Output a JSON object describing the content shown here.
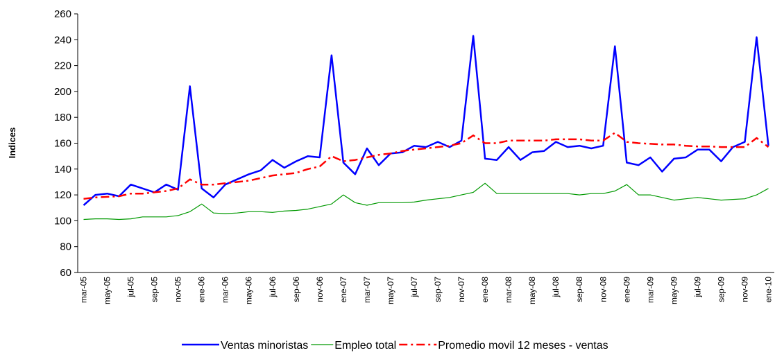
{
  "chart_data": {
    "type": "line",
    "y_label": "Indices",
    "categories": [
      "mar-05",
      null,
      "may-05",
      null,
      "jul-05",
      null,
      "sep-05",
      null,
      "nov-05",
      null,
      "ene-06",
      null,
      "mar-06",
      null,
      "may-06",
      null,
      "jul-06",
      null,
      "sep-06",
      null,
      "nov-06",
      null,
      "ene-07",
      null,
      "mar-07",
      null,
      "may-07",
      null,
      "jul-07",
      null,
      "sep-07",
      null,
      "nov-07",
      null,
      "ene-08",
      null,
      "mar-08",
      null,
      "may-08",
      null,
      "jul-08",
      null,
      "sep-08",
      null,
      "nov-08",
      null,
      "ene-09",
      null,
      "mar-09",
      null,
      "may-09",
      null,
      "jul-09",
      null,
      "sep-09",
      null,
      "nov-09",
      null,
      "ene-10"
    ],
    "series": [
      {
        "name": "Ventas minoristas",
        "color": "#0000ff",
        "style": "solid",
        "values": [
          112,
          120,
          121,
          119,
          128,
          125,
          122,
          128,
          124,
          204,
          125,
          118,
          128,
          132,
          136,
          139,
          147,
          141,
          146,
          150,
          149,
          228,
          145,
          136,
          156,
          143,
          152,
          153,
          158,
          157,
          161,
          157,
          162,
          243,
          148,
          147,
          157,
          147,
          153,
          154,
          161,
          157,
          158,
          156,
          158,
          235,
          145,
          143,
          149,
          138,
          148,
          149,
          155,
          155,
          146,
          157,
          161,
          242,
          158
        ]
      },
      {
        "name": "Empleo total",
        "color": "#009900",
        "style": "solid",
        "values": [
          101,
          101.5,
          101.5,
          101,
          101.5,
          103,
          103,
          103,
          104,
          107,
          113,
          106,
          105.5,
          106,
          107,
          107,
          106.5,
          107.5,
          108,
          109,
          111,
          113,
          120,
          114,
          112,
          114,
          114,
          114,
          114.5,
          116,
          117,
          118,
          120,
          122,
          129,
          121,
          121,
          121,
          121,
          121,
          121,
          121,
          120,
          121,
          121,
          123,
          128,
          120,
          120,
          118,
          116,
          117,
          118,
          117,
          116,
          116.5,
          117,
          120,
          125
        ]
      },
      {
        "name": "Promedio movil 12 meses - ventas",
        "color": "#ff0000",
        "style": "dashdot",
        "values": [
          117,
          118,
          118.5,
          119,
          121,
          121,
          122,
          123,
          125,
          132,
          128,
          128,
          129,
          130,
          131,
          133,
          135,
          136,
          137,
          140,
          142,
          150,
          146,
          147,
          149,
          151,
          152,
          154,
          155,
          156,
          157,
          158,
          160,
          166,
          160,
          160,
          162,
          162,
          162,
          162,
          163,
          163,
          163,
          162,
          162,
          168,
          161,
          160,
          159.5,
          159,
          159,
          158,
          157.5,
          157.5,
          157,
          157,
          157,
          164,
          157
        ]
      }
    ],
    "ylim": [
      60,
      260
    ],
    "yticks": [
      60,
      80,
      100,
      120,
      140,
      160,
      180,
      200,
      220,
      240,
      260
    ],
    "grid": false,
    "legend": "bottom"
  }
}
